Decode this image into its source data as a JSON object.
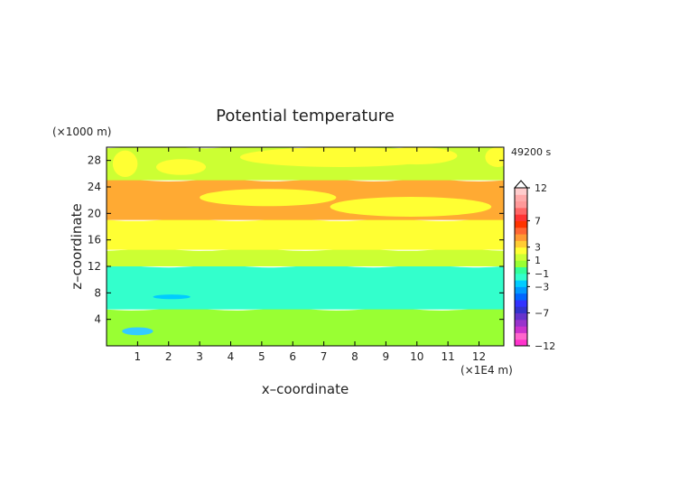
{
  "chart_data": {
    "type": "heatmap",
    "title": "Potential temperature",
    "xlabel": "x–coordinate",
    "ylabel": "z–coordinate",
    "x_unit": "(×1E4 m)",
    "y_unit": "(×1000 m)",
    "time_label": "49200 s",
    "xlim": [
      0,
      12.8
    ],
    "ylim": [
      0,
      30
    ],
    "x_ticks": [
      1,
      2,
      3,
      4,
      5,
      6,
      7,
      8,
      9,
      10,
      11,
      12
    ],
    "y_ticks": [
      4,
      8,
      12,
      16,
      20,
      24,
      28
    ],
    "colorbar": {
      "levels": [
        -12,
        -11,
        -10,
        -9,
        -8,
        -7,
        -6,
        -5,
        -4,
        -3,
        -2,
        -1,
        0,
        1,
        2,
        3,
        4,
        5,
        6,
        7,
        8,
        9,
        10,
        11,
        12
      ],
      "tick_labels": [
        "12",
        "7",
        "3",
        "1",
        "−1",
        "−3",
        "−7",
        "−12"
      ],
      "tick_values": [
        12,
        7,
        3,
        1,
        -1,
        -3,
        -7,
        -12
      ],
      "colors": [
        "#ff33cc",
        "#ff66cc",
        "#cc33cc",
        "#9933cc",
        "#6633cc",
        "#3333cc",
        "#3333ff",
        "#0066ff",
        "#0099ff",
        "#00ccff",
        "#33ffcc",
        "#33ff99",
        "#99ff33",
        "#ccff33",
        "#ffff33",
        "#ffcc33",
        "#ff9933",
        "#ff6633",
        "#ff3300",
        "#ff3333",
        "#ff6666",
        "#ff9999",
        "#ffaaaa",
        "#ffcccc"
      ]
    },
    "bands": [
      {
        "z": [
          0.0,
          5.5
        ],
        "value": 0,
        "color": "#99ff33"
      },
      {
        "z": [
          5.5,
          12.0
        ],
        "value": -1.5,
        "color": "#33ffcc"
      },
      {
        "z": [
          12.0,
          14.5
        ],
        "value": 0.5,
        "color": "#ccff33"
      },
      {
        "z": [
          14.5,
          19.0
        ],
        "value": 1.5,
        "color": "#ffff33"
      },
      {
        "z": [
          19.0,
          25.0
        ],
        "value": 3,
        "color": "#ffaa33"
      },
      {
        "z": [
          25.0,
          30.0
        ],
        "value": 0.5,
        "color": "#ccff33"
      }
    ],
    "features": [
      {
        "type": "warm_blob",
        "value": 1.5,
        "color": "#ffff33",
        "center": [
          5.2,
          22.4
        ],
        "radius": [
          2.2,
          1.3
        ]
      },
      {
        "type": "warm_blob",
        "value": 1.5,
        "color": "#ffff33",
        "center": [
          9.8,
          21.0
        ],
        "radius": [
          2.6,
          1.5
        ]
      },
      {
        "type": "warm_blob",
        "value": 1.5,
        "color": "#ffff33",
        "center": [
          2.4,
          27.0
        ],
        "radius": [
          0.8,
          1.2
        ]
      },
      {
        "type": "warm_blob",
        "value": 1.5,
        "color": "#ffff33",
        "center": [
          7.5,
          28.5
        ],
        "radius": [
          3.2,
          1.5
        ]
      },
      {
        "type": "warm_blob",
        "value": 1.5,
        "color": "#ffff33",
        "center": [
          10.0,
          28.7
        ],
        "radius": [
          1.3,
          1.3
        ]
      },
      {
        "type": "warm_blob",
        "value": 1.5,
        "color": "#ffff33",
        "center": [
          12.6,
          28.5
        ],
        "radius": [
          0.4,
          1.5
        ]
      },
      {
        "type": "warm_blob",
        "value": 1.5,
        "color": "#ffff33",
        "center": [
          0.6,
          27.5
        ],
        "radius": [
          0.4,
          2.0
        ]
      },
      {
        "type": "cold_patch",
        "value": -3,
        "color": "#00ccff",
        "center": [
          2.1,
          7.4
        ],
        "radius": [
          0.6,
          0.35
        ]
      },
      {
        "type": "cold_patch",
        "value": -2,
        "color": "#33ccff",
        "center": [
          1.0,
          2.2
        ],
        "radius": [
          0.5,
          0.6
        ]
      }
    ]
  }
}
